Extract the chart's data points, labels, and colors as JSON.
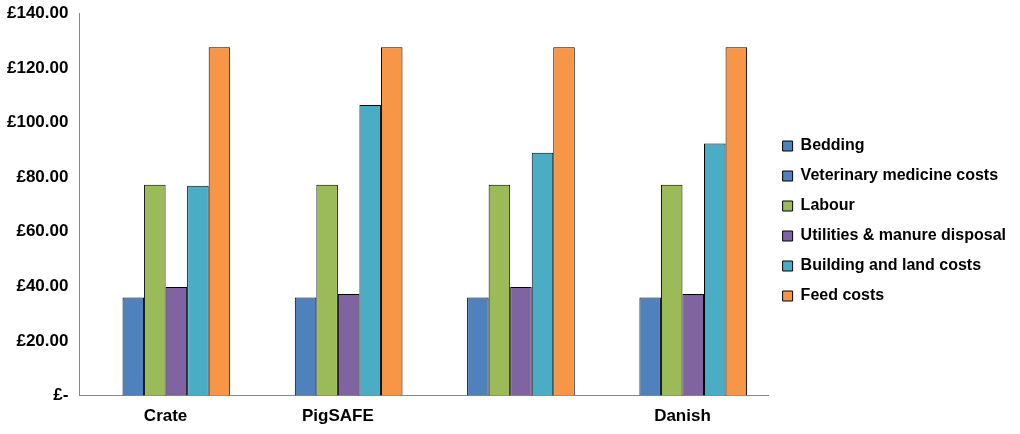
{
  "chart_data": {
    "type": "bar",
    "categories": [
      "Crate",
      "PigSAFE",
      null,
      "Danish"
    ],
    "series": [
      {
        "name": "Bedding",
        "color": "#4f81bd",
        "values": [
          0,
          0,
          0,
          0
        ]
      },
      {
        "name": "Veterinary medicine costs",
        "color": "#4f81bd",
        "values": [
          35.9,
          35.9,
          35.9,
          35.9
        ]
      },
      {
        "name": "Labour",
        "color": "#9bbb59",
        "values": [
          77.2,
          77.2,
          77.2,
          77.2
        ]
      },
      {
        "name": "Utilities & manure disposal",
        "color": "#8064a2",
        "values": [
          39.8,
          37.2,
          39.8,
          37.2
        ]
      },
      {
        "name": "Building and land costs",
        "color": "#4bacc6",
        "values": [
          76.8,
          106.4,
          88.9,
          92.3
        ]
      },
      {
        "name": "Feed costs",
        "color": "#f79646",
        "values": [
          127.5,
          127.5,
          127.5,
          127.5
        ]
      }
    ],
    "ylim": [
      0,
      140
    ],
    "yticks": [
      {
        "value": 0,
        "label": "£-"
      },
      {
        "value": 20,
        "label": "£20.00"
      },
      {
        "value": 40,
        "label": "£40.00"
      },
      {
        "value": 60,
        "label": "£60.00"
      },
      {
        "value": 80,
        "label": "£80.00"
      },
      {
        "value": 100,
        "label": "£100.00"
      },
      {
        "value": 120,
        "label": "£120.00"
      },
      {
        "value": 140,
        "label": "£140.00"
      }
    ],
    "grid": false,
    "legend": "right"
  }
}
